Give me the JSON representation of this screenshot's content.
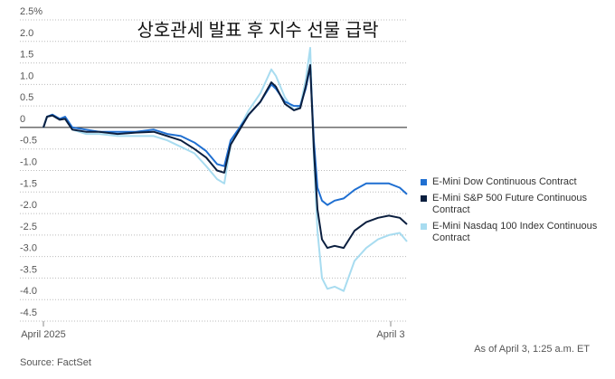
{
  "chart_data": {
    "type": "line",
    "title": "상호관세 발표 후 지수 선물 급락",
    "note": "As of April 3, 1:25 a.m. ET",
    "source": "Source: FactSet",
    "x": [
      0,
      4,
      10,
      18,
      24,
      32,
      47,
      62,
      82,
      102,
      122,
      137,
      152,
      167,
      180,
      192,
      200,
      207,
      217,
      227,
      240,
      252,
      257,
      267,
      277,
      284,
      290,
      295,
      299,
      303,
      308,
      314,
      322,
      332,
      344,
      357,
      370,
      382,
      394,
      402
    ],
    "xlim": [
      0,
      402
    ],
    "xticks": [
      {
        "value": 0,
        "label": "April 2025"
      },
      {
        "value": 384,
        "label": "April 3"
      }
    ],
    "ylim": [
      -4.5,
      2.5
    ],
    "yticks": [
      {
        "value": 2.5,
        "label": "2.5%"
      },
      {
        "value": 2,
        "label": "2.0"
      },
      1.5,
      {
        "value": 1,
        "label": "1.0"
      },
      0.5,
      0,
      -0.5,
      {
        "value": -1,
        "label": "-1.0"
      },
      -1.5,
      {
        "value": -2,
        "label": "-2.0"
      },
      -2.5,
      {
        "value": -3,
        "label": "-3.0"
      },
      -3.5,
      {
        "value": -4,
        "label": "-4.0"
      },
      -4.5
    ],
    "grid": true,
    "series": [
      {
        "name": "E-Mini Dow Continuous Contract",
        "color": "#1f6fd1",
        "values": [
          0,
          0.25,
          0.3,
          0.2,
          0.25,
          0,
          -0.05,
          -0.1,
          -0.1,
          -0.1,
          -0.05,
          -0.15,
          -0.2,
          -0.35,
          -0.55,
          -0.85,
          -0.9,
          -0.3,
          0,
          0.3,
          0.6,
          1.0,
          0.9,
          0.6,
          0.5,
          0.5,
          0.9,
          1.4,
          -0.3,
          -1.4,
          -1.7,
          -1.8,
          -1.7,
          -1.65,
          -1.45,
          -1.3,
          -1.3,
          -1.3,
          -1.4,
          -1.55
        ]
      },
      {
        "name": "E-Mini S&P 500 Future Continuous Contract",
        "color": "#0b1f3f",
        "values": [
          0,
          0.25,
          0.28,
          0.18,
          0.2,
          -0.05,
          -0.1,
          -0.1,
          -0.15,
          -0.12,
          -0.1,
          -0.2,
          -0.3,
          -0.5,
          -0.7,
          -1.0,
          -1.05,
          -0.4,
          -0.05,
          0.3,
          0.6,
          1.05,
          0.95,
          0.55,
          0.4,
          0.45,
          0.95,
          1.45,
          -0.5,
          -1.9,
          -2.6,
          -2.8,
          -2.75,
          -2.8,
          -2.4,
          -2.2,
          -2.1,
          -2.05,
          -2.1,
          -2.25
        ]
      },
      {
        "name": "E-Mini Nasdaq 100 Index Continuous Contract",
        "color": "#a8dcf0",
        "values": [
          0,
          0.25,
          0.28,
          0.2,
          0.2,
          -0.05,
          -0.15,
          -0.15,
          -0.2,
          -0.2,
          -0.2,
          -0.3,
          -0.45,
          -0.6,
          -0.9,
          -1.2,
          -1.3,
          -0.4,
          0,
          0.4,
          0.8,
          1.35,
          1.2,
          0.7,
          0.4,
          0.5,
          1.1,
          1.85,
          -0.7,
          -2.4,
          -3.5,
          -3.75,
          -3.7,
          -3.8,
          -3.1,
          -2.8,
          -2.6,
          -2.5,
          -2.45,
          -2.65
        ]
      }
    ]
  }
}
